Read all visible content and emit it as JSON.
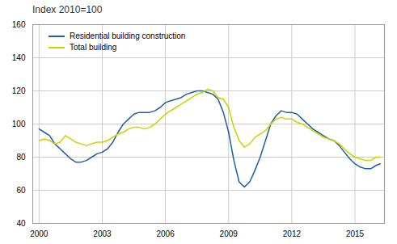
{
  "chart_data": {
    "type": "line",
    "title": "Index 2010=100",
    "x": [
      2000.0,
      2000.25,
      2000.5,
      2000.75,
      2001.0,
      2001.25,
      2001.5,
      2001.75,
      2002.0,
      2002.25,
      2002.5,
      2002.75,
      2003.0,
      2003.25,
      2003.5,
      2003.75,
      2004.0,
      2004.25,
      2004.5,
      2004.75,
      2005.0,
      2005.25,
      2005.5,
      2005.75,
      2006.0,
      2006.25,
      2006.5,
      2006.75,
      2007.0,
      2007.25,
      2007.5,
      2007.75,
      2008.0,
      2008.25,
      2008.5,
      2008.75,
      2009.0,
      2009.25,
      2009.5,
      2009.75,
      2010.0,
      2010.25,
      2010.5,
      2010.75,
      2011.0,
      2011.25,
      2011.5,
      2011.75,
      2012.0,
      2012.25,
      2012.5,
      2012.75,
      2013.0,
      2013.25,
      2013.5,
      2013.75,
      2014.0,
      2014.25,
      2014.5,
      2014.75,
      2015.0,
      2015.25,
      2015.5,
      2015.75,
      2016.0,
      2016.2
    ],
    "series": [
      {
        "name": "Residential building construction",
        "color": "#2060a0",
        "values": [
          97,
          95,
          93,
          88,
          85,
          82,
          79,
          77,
          77,
          78,
          80,
          82,
          83,
          85,
          89,
          95,
          100,
          103,
          106,
          107,
          107,
          107,
          108,
          110,
          113,
          114,
          115,
          116,
          118,
          119,
          120,
          120,
          119,
          118,
          115,
          107,
          95,
          78,
          65,
          62,
          65,
          72,
          80,
          90,
          100,
          105,
          108,
          107,
          107,
          106,
          103,
          100,
          97,
          95,
          93,
          91,
          90,
          87,
          83,
          79,
          76,
          74,
          73,
          73,
          75,
          76
        ]
      },
      {
        "name": "Total building",
        "color": "#c8d400",
        "values": [
          90,
          91,
          90,
          88,
          89,
          93,
          91,
          89,
          88,
          87,
          88,
          89,
          89,
          90,
          92,
          94,
          95,
          97,
          98,
          98,
          97,
          98,
          100,
          103,
          106,
          108,
          110,
          112,
          114,
          116,
          118,
          119,
          121,
          120,
          116,
          115,
          110,
          98,
          90,
          86,
          88,
          92,
          94,
          96,
          100,
          103,
          104,
          103,
          103,
          101,
          100,
          98,
          96,
          94,
          92,
          91,
          90,
          88,
          85,
          82,
          80,
          79,
          78,
          78,
          80,
          80
        ]
      }
    ],
    "xlim": [
      1999.7,
      2016.4
    ],
    "xticks": [
      2000,
      2003,
      2006,
      2009,
      2012,
      2015
    ],
    "ylim": [
      40,
      160
    ],
    "yticks": [
      40,
      60,
      80,
      100,
      120,
      140,
      160
    ],
    "grid": true,
    "legend": "upper left"
  }
}
